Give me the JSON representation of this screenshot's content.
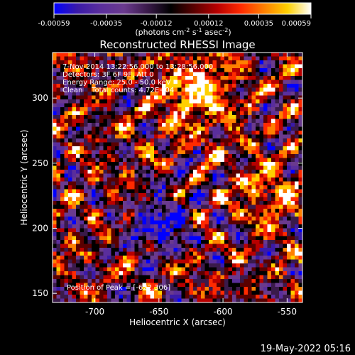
{
  "colors": {
    "colormap": [
      "#0000ff",
      "#3a1aa8",
      "#5a2e9c",
      "#6a3a8e",
      "#3a1a4a",
      "#000000",
      "#5a0000",
      "#b80000",
      "#ff2a00",
      "#ff8000",
      "#ffd000",
      "#ffffff"
    ],
    "axis": "#ffffff",
    "background": "#000000"
  },
  "colorbar": {
    "tick_labels": [
      "-0.00059",
      "-0.00035",
      "-0.00012",
      "0.00012",
      "0.00035",
      "0.00059"
    ],
    "range": [
      -0.00059,
      0.00059
    ],
    "units_label": "(photons cm-2 s-1 asec-2)"
  },
  "footer": {
    "timestamp": "19-May-2022 05:16"
  },
  "chart_data": {
    "type": "heatmap",
    "title": "Reconstructed RHESSI Image",
    "xlabel": "Heliocentric X (arcsec)",
    "ylabel": "Heliocentric Y (arcsec)",
    "xlim": [
      -733,
      -538
    ],
    "ylim": [
      143,
      335
    ],
    "x_ticks": [
      -700,
      -650,
      -600,
      -550
    ],
    "y_ticks": [
      150,
      200,
      250,
      300
    ],
    "x_tick_labels": [
      "-700",
      "-650",
      "-600",
      "-550"
    ],
    "y_tick_labels": [
      "150",
      "200",
      "250",
      "300"
    ],
    "annotations": [
      "7-Nov-2014 13:22:56.000 to 13:28:56.000",
      "Detectors: 3F 6F 9F, Att 0",
      "Energy Range: 25.0 - 50.0 keV",
      "Clean    Total counts: 4.72E+04"
    ],
    "peak_label": "Position of Peak = [-622,306]",
    "peak_position": [
      -622,
      306
    ],
    "grid": false
  }
}
